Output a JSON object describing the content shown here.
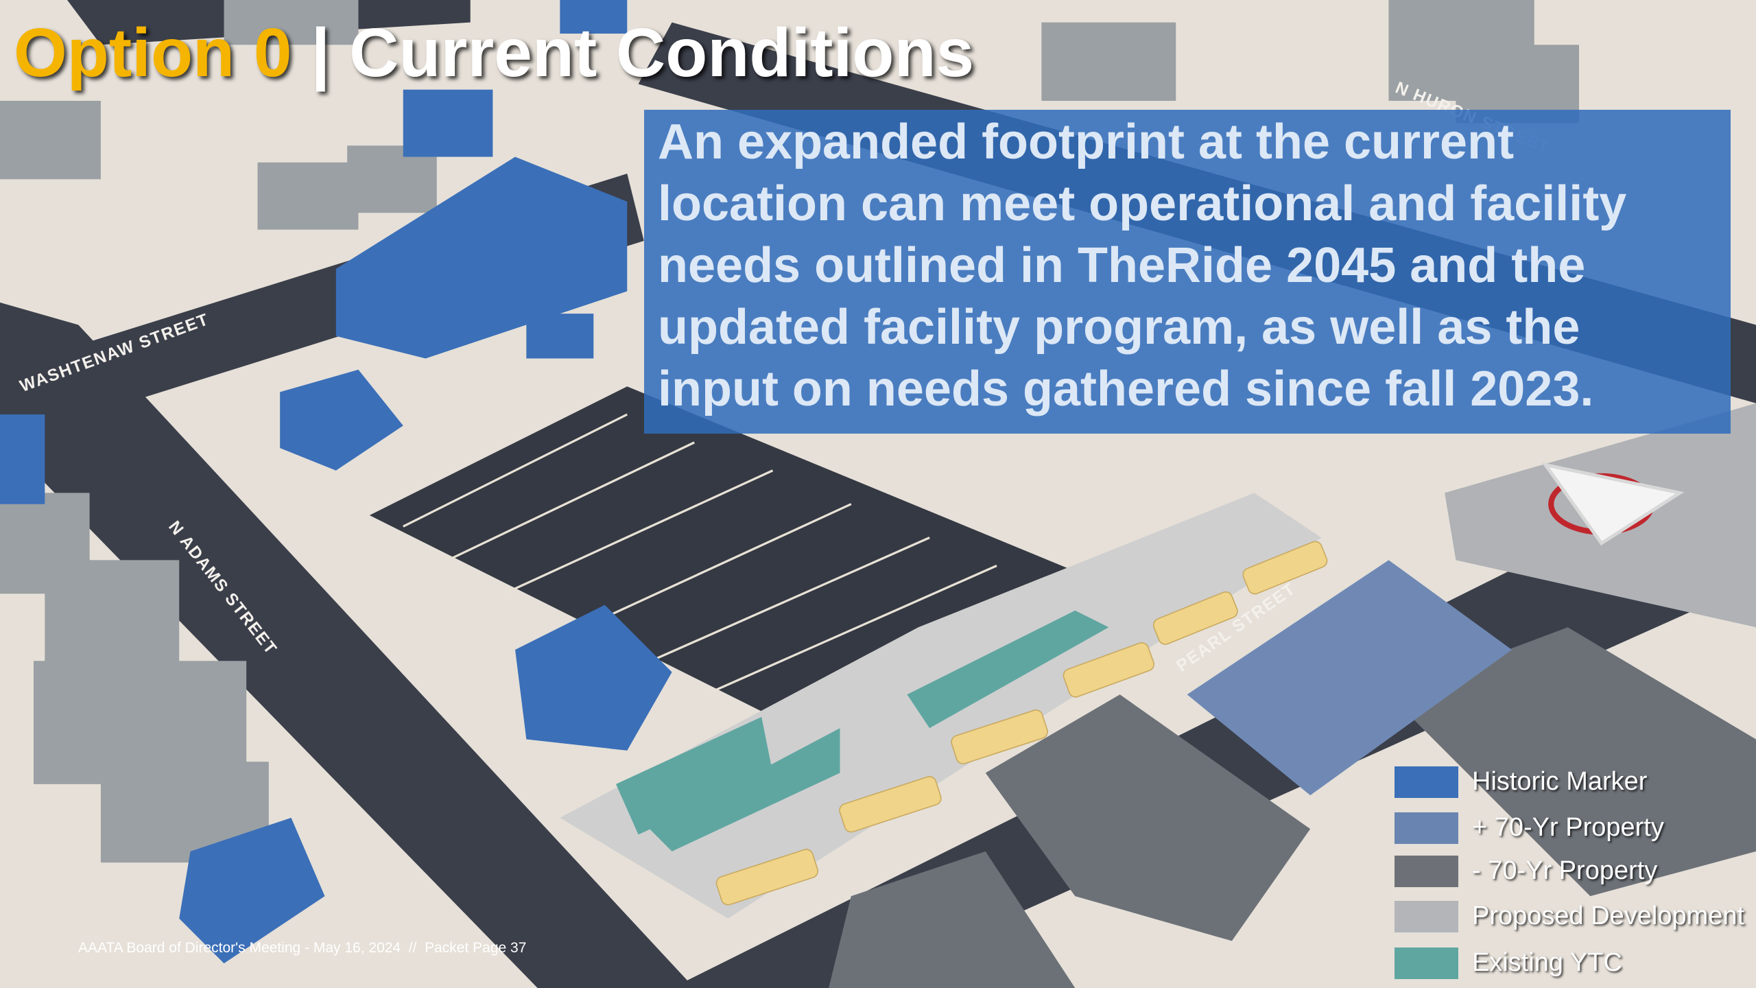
{
  "title": {
    "option": "Option 0",
    "separator": "|",
    "heading": "Current Conditions"
  },
  "callout": {
    "lines": [
      "An expanded footprint at the current",
      "location can meet operational and facility",
      "needs outlined in TheRide 2045 and the",
      "updated facility program, as well as the",
      "input on needs gathered since fall 2023."
    ]
  },
  "streets": {
    "washtenaw": "WASHTENAW STREET",
    "adams": "N ADAMS STREET",
    "pearl": "PEARL STREET",
    "huron": "N HURON STREET"
  },
  "legend": [
    {
      "label": "Historic Marker",
      "color": "#3b6fb8"
    },
    {
      "label": "+ 70-Yr Property",
      "color": "#6984b0"
    },
    {
      "label": "- 70-Yr Property",
      "color": "#6d7177"
    },
    {
      "label": "Proposed Development",
      "color": "#b3b5b9"
    },
    {
      "label": "Existing YTC",
      "color": "#5fa6a1"
    }
  ],
  "footer": "AAATA Board of Director's Meeting - May 16, 2024  //  Packet Page 37"
}
